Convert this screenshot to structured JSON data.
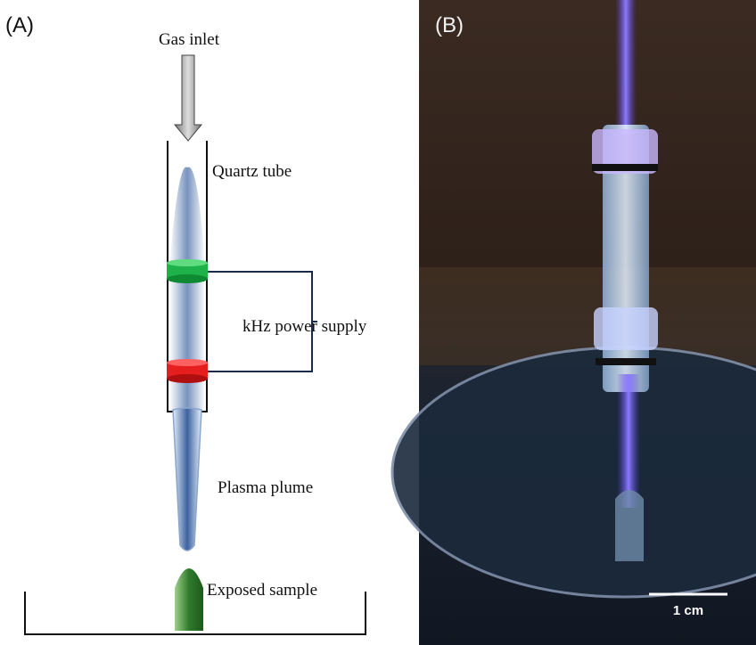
{
  "panels": {
    "a": "(A)",
    "b": "(B)"
  },
  "diagram": {
    "gas_inlet": "Gas inlet",
    "quartz_tube": "Quartz tube",
    "power_supply": "kHz power supply",
    "plasma_plume": "Plasma plume",
    "exposed_sample": "Exposed sample"
  },
  "photo": {
    "scale_bar": "1 cm"
  }
}
